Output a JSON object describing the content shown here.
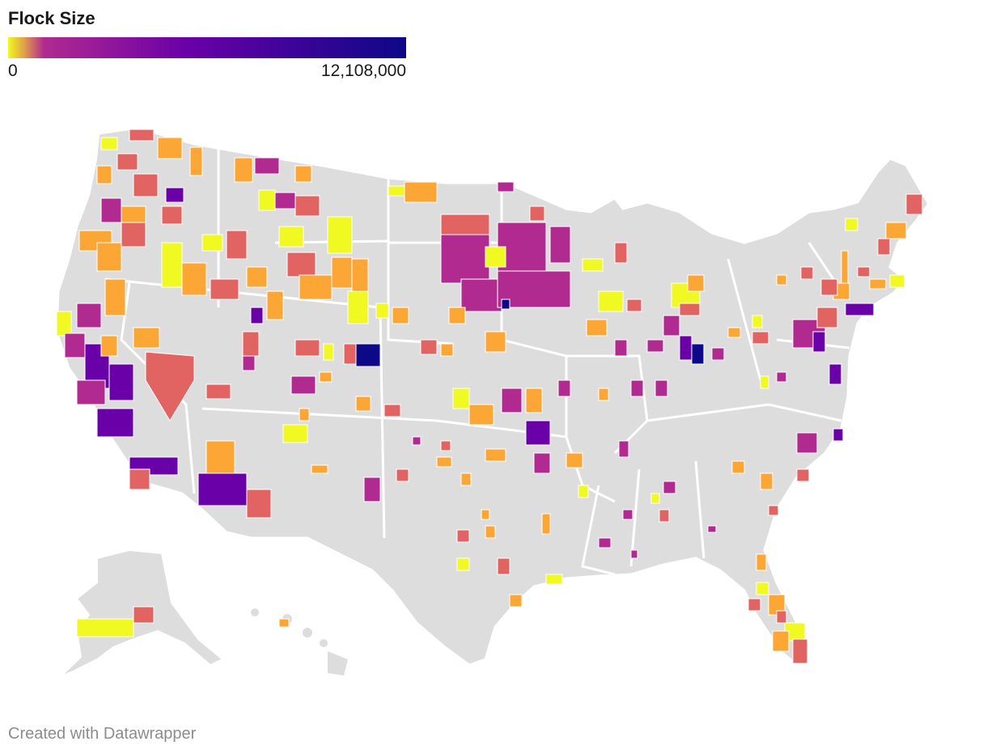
{
  "legend": {
    "title": "Flock Size",
    "min_label": "0",
    "max_label": "12,108,000",
    "min_value": 0,
    "max_value": 12108000,
    "colors": [
      "#f0f921",
      "#fca636",
      "#e16462",
      "#b12a90",
      "#6a00a8",
      "#0d0887"
    ]
  },
  "map": {
    "region": "United States counties",
    "no_data_color": "#dddddd",
    "border_color": "#ffffff"
  },
  "footer": {
    "credit": "Created with Datawrapper"
  }
}
